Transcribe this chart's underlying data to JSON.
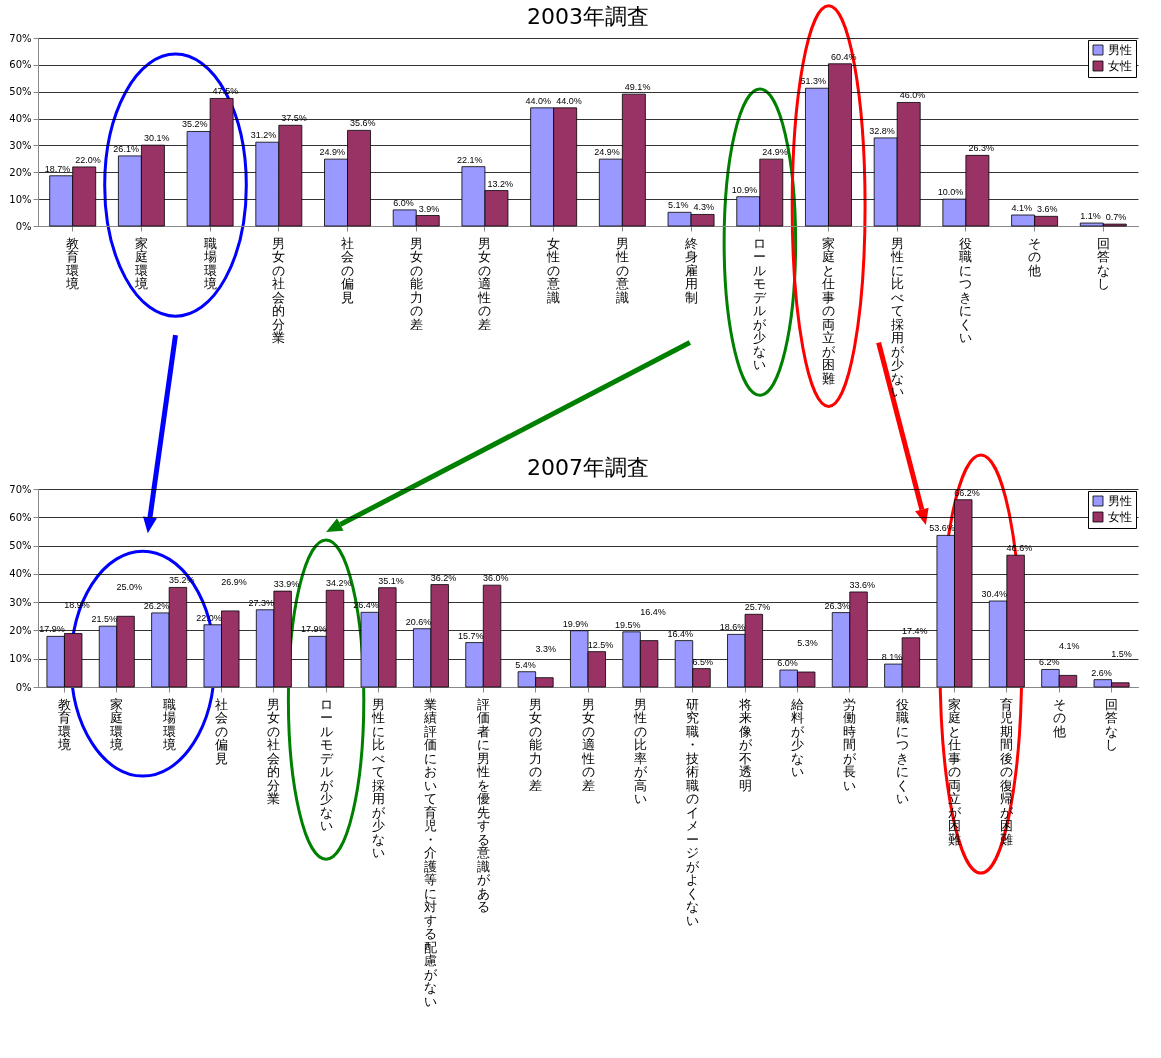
{
  "chart_data": [
    {
      "type": "bar",
      "title": "2003年調査",
      "categories": [
        "教育環境",
        "家庭環境",
        "職場環境",
        "男女の社会的分業",
        "社会の偏見",
        "男女の能力の差",
        "男女の適性の差",
        "女性の意識",
        "男性の意識",
        "終身雇用制",
        "ロールモデルが少ない",
        "家庭と仕事の両立が困難",
        "男性に比べて採用が少ない",
        "役職につきにくい",
        "その他",
        "回答なし"
      ],
      "series": [
        {
          "name": "男性",
          "color": "#9999ff",
          "values": [
            18.7,
            26.1,
            35.2,
            31.2,
            24.9,
            6.0,
            22.1,
            44.0,
            24.9,
            5.1,
            10.9,
            51.3,
            32.8,
            10.0,
            4.1,
            1.1
          ],
          "value_labels": [
            "18.7%",
            "26.1%",
            "35.2%",
            "31.2%",
            "24.9%",
            "6.0%",
            "22.1%",
            "44.0%",
            "24.9%",
            "5.1%",
            "10.9%",
            "51.3%",
            "32.8%",
            "10.0%",
            "4.1%",
            "1.1%"
          ]
        },
        {
          "name": "女性",
          "color": "#993366",
          "values": [
            22.0,
            30.1,
            47.5,
            37.5,
            35.6,
            3.9,
            13.2,
            44.0,
            49.1,
            4.3,
            24.9,
            60.4,
            46.0,
            26.3,
            3.6,
            0.7
          ],
          "value_labels": [
            "22.0%",
            "30.1%",
            "47.5%",
            "37.5%",
            "35.6%",
            "3.9%",
            "13.2%",
            "44.0%",
            "49.1%",
            "4.3%",
            "24.9%",
            "60.4%",
            "46.0%",
            "26.3%",
            "3.6%",
            "0.7%"
          ]
        }
      ],
      "ylim": [
        0,
        70
      ],
      "yticks": [
        {
          "value": 0,
          "label": "0%"
        },
        {
          "value": 10,
          "label": "10%"
        },
        {
          "value": 20,
          "label": "20%"
        },
        {
          "value": 30,
          "label": "30%"
        },
        {
          "value": 40,
          "label": "40%"
        },
        {
          "value": 50,
          "label": "50%"
        },
        {
          "value": 60,
          "label": "60%"
        },
        {
          "value": 70,
          "label": "70%"
        }
      ],
      "grid": "y",
      "legend": "top right"
    },
    {
      "type": "bar",
      "title": "2007年調査",
      "categories": [
        "教育環境",
        "家庭環境",
        "職場環境",
        "社会の偏見",
        "男女の社会的分業",
        "ロールモデルが少ない",
        "男性に比べて採用が少ない",
        "業績評価において育児・介護等に対する配慮がない",
        "評価者に男性を優先する意識がある",
        "男女の能力の差",
        "男女の適性の差",
        "男性の比率が高い",
        "研究職・技術職のイメージがよくない",
        "将来像が不透明",
        "給料が少ない",
        "労働時間が長い",
        "役職につきにくい",
        "家庭と仕事の両立が困難",
        "育児期間後の復帰が困難",
        "その他",
        "回答なし"
      ],
      "series": [
        {
          "name": "男性",
          "color": "#9999ff",
          "values": [
            17.9,
            21.5,
            26.2,
            22.0,
            27.3,
            17.9,
            26.4,
            20.6,
            15.7,
            5.4,
            19.9,
            19.5,
            16.4,
            18.6,
            6.0,
            26.3,
            8.1,
            53.6,
            30.4,
            6.2,
            2.6
          ],
          "value_labels": [
            "17.9%",
            "21.5%",
            "26.2%",
            "22.0%",
            "27.3%",
            "17.9%",
            "26.4%",
            "20.6%",
            "15.7%",
            "5.4%",
            "19.9%",
            "19.5%",
            "16.4%",
            "18.6%",
            "6.0%",
            "26.3%",
            "8.1%",
            "53.6%",
            "30.4%",
            "6.2%",
            "2.6%"
          ]
        },
        {
          "name": "女性",
          "color": "#993366",
          "values": [
            18.9,
            25.0,
            35.2,
            26.9,
            33.9,
            34.2,
            35.1,
            36.2,
            36.0,
            3.3,
            12.5,
            16.4,
            6.5,
            25.7,
            5.3,
            33.6,
            17.4,
            66.2,
            46.6,
            4.1,
            1.5
          ],
          "value_labels": [
            "18.9%",
            "25.0%",
            "35.2%",
            "26.9%",
            "33.9%",
            "34.2%",
            "35.1%",
            "36.2%",
            "36.0%",
            "3.3%",
            "12.5%",
            "16.4%",
            "6.5%",
            "25.7%",
            "5.3%",
            "33.6%",
            "17.4%",
            "66.2%",
            "46.6%",
            "4.1%",
            "1.5%"
          ]
        }
      ],
      "ylim": [
        0,
        70
      ],
      "yticks": [
        {
          "value": 0,
          "label": "0%"
        },
        {
          "value": 10,
          "label": "10%"
        },
        {
          "value": 20,
          "label": "20%"
        },
        {
          "value": 30,
          "label": "30%"
        },
        {
          "value": 40,
          "label": "40%"
        },
        {
          "value": 50,
          "label": "50%"
        },
        {
          "value": 60,
          "label": "60%"
        },
        {
          "value": 70,
          "label": "70%"
        }
      ],
      "grid": "y",
      "legend": "top right"
    }
  ]
}
